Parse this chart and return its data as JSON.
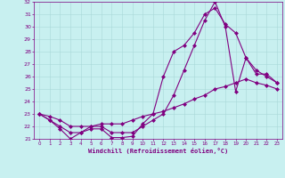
{
  "xlabel": "Windchill (Refroidissement éolien,°C)",
  "bg_color": "#c8f0f0",
  "line_color": "#800080",
  "grid_color": "#a8d8d8",
  "x_min": 0,
  "x_max": 23,
  "y_min": 21,
  "y_max": 32,
  "line1_x": [
    0,
    1,
    2,
    3,
    4,
    5,
    6,
    7,
    8,
    9,
    10,
    11,
    12,
    13,
    14,
    15,
    16,
    17,
    18,
    19,
    20,
    21,
    22,
    23
  ],
  "line1_y": [
    23.0,
    22.5,
    21.8,
    21.0,
    21.5,
    21.8,
    21.8,
    21.1,
    21.1,
    21.2,
    22.2,
    23.0,
    26.0,
    28.0,
    28.5,
    29.5,
    31.0,
    31.5,
    30.2,
    29.5,
    27.5,
    26.2,
    26.2,
    25.5
  ],
  "line2_x": [
    0,
    1,
    2,
    3,
    4,
    5,
    6,
    7,
    8,
    9,
    10,
    11,
    12,
    13,
    14,
    15,
    16,
    17,
    18,
    19,
    20,
    21,
    22,
    23
  ],
  "line2_y": [
    23.0,
    22.5,
    22.0,
    21.5,
    21.5,
    22.0,
    22.0,
    21.5,
    21.5,
    21.5,
    22.0,
    22.5,
    23.0,
    24.5,
    26.5,
    28.5,
    30.5,
    32.0,
    30.0,
    24.8,
    27.5,
    26.5,
    26.0,
    25.5
  ],
  "line3_x": [
    0,
    1,
    2,
    3,
    4,
    5,
    6,
    7,
    8,
    9,
    10,
    11,
    12,
    13,
    14,
    15,
    16,
    17,
    18,
    19,
    20,
    21,
    22,
    23
  ],
  "line3_y": [
    23.0,
    22.8,
    22.5,
    22.0,
    22.0,
    22.0,
    22.2,
    22.2,
    22.2,
    22.5,
    22.8,
    23.0,
    23.2,
    23.5,
    23.8,
    24.2,
    24.5,
    25.0,
    25.2,
    25.5,
    25.8,
    25.5,
    25.3,
    25.0
  ]
}
